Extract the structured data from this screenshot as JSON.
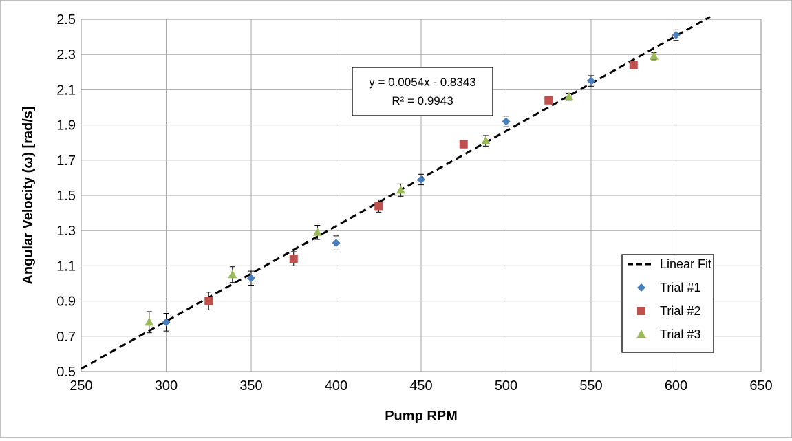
{
  "chart_data": {
    "type": "scatter",
    "xlabel": "Pump RPM",
    "ylabel": "Angular Velocity (ω) [rad/s]",
    "xlim": [
      250,
      650
    ],
    "ylim": [
      0.5,
      2.5
    ],
    "x_ticks": [
      "250",
      "300",
      "350",
      "400",
      "450",
      "500",
      "550",
      "600",
      "650"
    ],
    "y_ticks": [
      "0.5",
      "0.7",
      "0.9",
      "1.1",
      "1.3",
      "1.5",
      "1.7",
      "1.9",
      "2.1",
      "2.3",
      "2.5"
    ],
    "grid": true,
    "legend_position": "bottom-right",
    "fit": {
      "name": "Linear Fit",
      "slope": 0.0054,
      "intercept": -0.8343,
      "x_range": [
        250,
        620
      ],
      "equation": "y = 0.0054x - 0.8343",
      "r_squared": "R² = 0.9943"
    },
    "series": [
      {
        "name": "Trial #1",
        "marker": "diamond",
        "color": "#4a7ebb",
        "points": [
          {
            "x": 300,
            "y": 0.78,
            "err": 0.05
          },
          {
            "x": 350,
            "y": 1.03,
            "err": 0.04
          },
          {
            "x": 400,
            "y": 1.23,
            "err": 0.04
          },
          {
            "x": 450,
            "y": 1.59,
            "err": 0.03
          },
          {
            "x": 500,
            "y": 1.92,
            "err": 0.03
          },
          {
            "x": 550,
            "y": 2.15,
            "err": 0.03
          },
          {
            "x": 600,
            "y": 2.41,
            "err": 0.03
          }
        ]
      },
      {
        "name": "Trial #2",
        "marker": "square",
        "color": "#c0504d",
        "points": [
          {
            "x": 325,
            "y": 0.9,
            "err": 0.05
          },
          {
            "x": 375,
            "y": 1.14,
            "err": 0.04
          },
          {
            "x": 425,
            "y": 1.44,
            "err": 0.035
          },
          {
            "x": 475,
            "y": 1.79,
            "err": 0.02
          },
          {
            "x": 525,
            "y": 2.04,
            "err": 0.02
          },
          {
            "x": 575,
            "y": 2.24,
            "err": 0.02
          }
        ]
      },
      {
        "name": "Trial #3",
        "marker": "triangle",
        "color": "#9bbb59",
        "points": [
          {
            "x": 290,
            "y": 0.78,
            "err": 0.06
          },
          {
            "x": 339,
            "y": 1.05,
            "err": 0.045
          },
          {
            "x": 389,
            "y": 1.29,
            "err": 0.04
          },
          {
            "x": 438,
            "y": 1.53,
            "err": 0.035
          },
          {
            "x": 488,
            "y": 1.81,
            "err": 0.03
          },
          {
            "x": 537,
            "y": 2.06,
            "err": 0.02
          },
          {
            "x": 587,
            "y": 2.29,
            "err": 0.02
          }
        ]
      }
    ]
  }
}
